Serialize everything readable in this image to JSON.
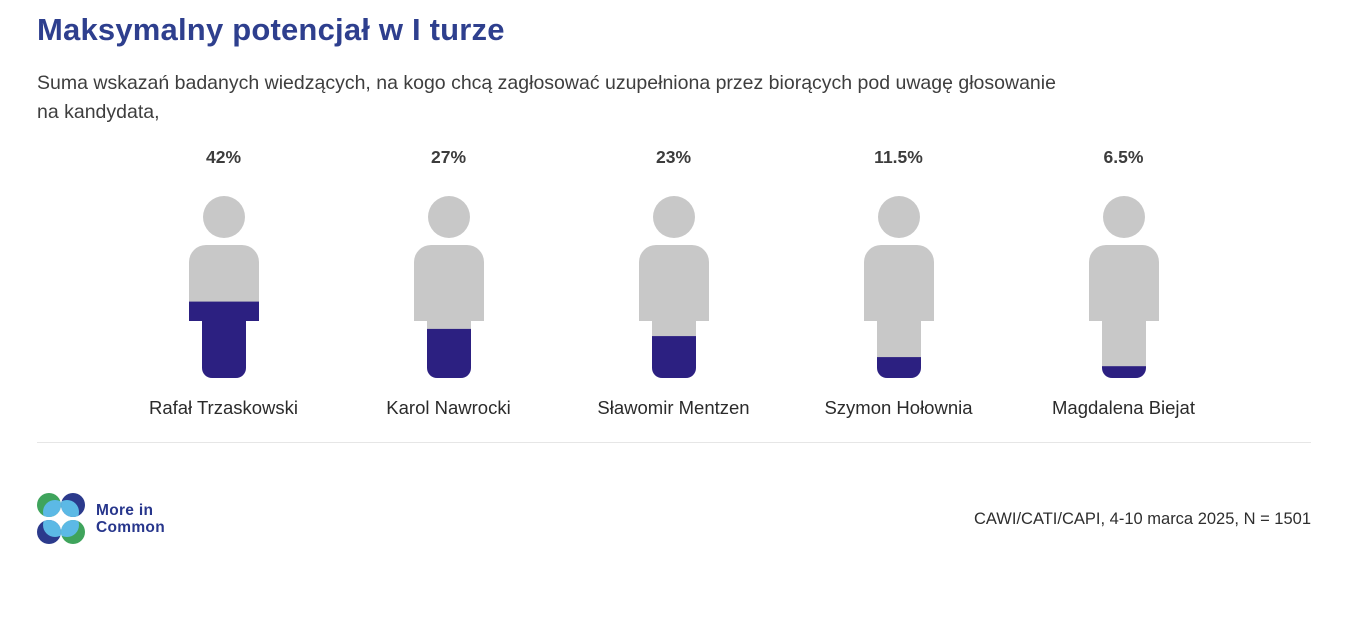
{
  "header": {
    "title": "Maksymalny potencjał w I turze",
    "subtitle_line1": "Suma wskazań badanych wiedzących, na kogo chcą zagłosować uzupełniona przez biorących pod uwagę głosowanie",
    "subtitle_line2": "na kandydata,"
  },
  "chart_data": {
    "type": "bar",
    "subtype": "pictogram-person-fill",
    "title": "Maksymalny potencjał w I turze",
    "unit": "%",
    "categories": [
      "Rafał Trzaskowski",
      "Karol Nawrocki",
      "Sławomir Mentzen",
      "Szymon Hołownia",
      "Magdalena Biejat"
    ],
    "values": [
      42,
      27,
      23,
      11.5,
      6.5
    ],
    "value_labels": [
      "42%",
      "27%",
      "23%",
      "11.5%",
      "6.5%"
    ],
    "ylim": [
      0,
      100
    ],
    "fill_direction": "bottom-up",
    "fill_color": "#2C2081",
    "base_color": "#C8C8C8",
    "value_label_position": "above",
    "category_label_position": "below"
  },
  "footer": {
    "logo_line1": "More in",
    "logo_line2": "Common",
    "source": "CAWI/CATI/CAPI, 4-10 marca 2025, N = 1501"
  },
  "colors": {
    "title_navy": "#2E3F8E",
    "figure_fill": "#2C2081",
    "figure_base": "#C8C8C8",
    "logo_green": "#3FA45C",
    "logo_navy": "#2B3A8C",
    "logo_light_blue": "#5CB9E5"
  }
}
